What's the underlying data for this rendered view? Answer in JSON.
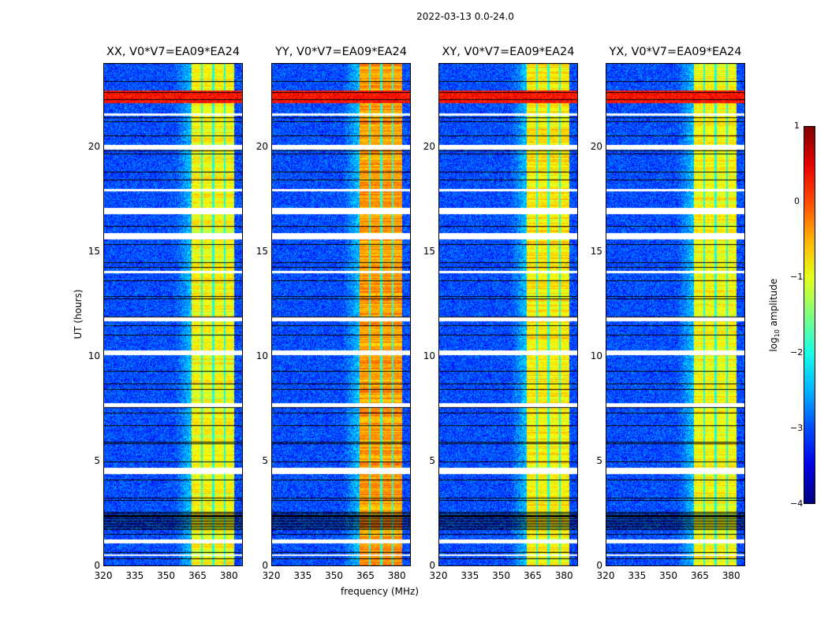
{
  "chart_data": {
    "type": "heatmap",
    "title": "2022-03-13 0.0-24.0",
    "xlabel": "frequency (MHz)",
    "ylabel": "UT (hours)",
    "xlim": [
      320,
      386.7
    ],
    "ylim": [
      0,
      24
    ],
    "xticks": [
      "320",
      "335",
      "350",
      "365",
      "380"
    ],
    "yticks": [
      "0",
      "5",
      "10",
      "15",
      "20"
    ],
    "panels": [
      {
        "title": "XX, V0*V7=EA09*EA24",
        "band_level": -0.9
      },
      {
        "title": "YY, V0*V7=EA09*EA24",
        "band_level": -0.4
      },
      {
        "title": "XY, V0*V7=EA09*EA24",
        "band_level": -0.8
      },
      {
        "title": "YX, V0*V7=EA09*EA24",
        "band_level": -0.9
      }
    ],
    "features": {
      "background_level": -3.0,
      "band_mhz": [
        362,
        382.5
      ],
      "band_gaps_mhz": [
        366.8,
        372.4,
        377.8
      ],
      "rfi_hours": [
        22.1,
        22.7
      ],
      "flagged_hours": [
        [
          0.5,
          0.6
        ],
        [
          1.1,
          1.3
        ],
        [
          4.4,
          4.7
        ],
        [
          7.6,
          7.8
        ],
        [
          10.1,
          10.3
        ],
        [
          11.7,
          11.9
        ],
        [
          14.0,
          14.1
        ],
        [
          15.6,
          15.9
        ],
        [
          16.8,
          17.1
        ],
        [
          17.9,
          18.0
        ],
        [
          19.9,
          20.1
        ],
        [
          21.5,
          21.6
        ]
      ],
      "dense_black_hours": [
        1.8,
        2.6
      ]
    },
    "colorbar": {
      "label": "log10 amplitude",
      "label_base": "log",
      "label_sub": "10",
      "label_rest": " amplitude",
      "range": [
        -4,
        1
      ],
      "ticks": [
        "1",
        "0",
        "−1",
        "−2",
        "−3",
        "−4"
      ],
      "colormap": "jet"
    }
  }
}
